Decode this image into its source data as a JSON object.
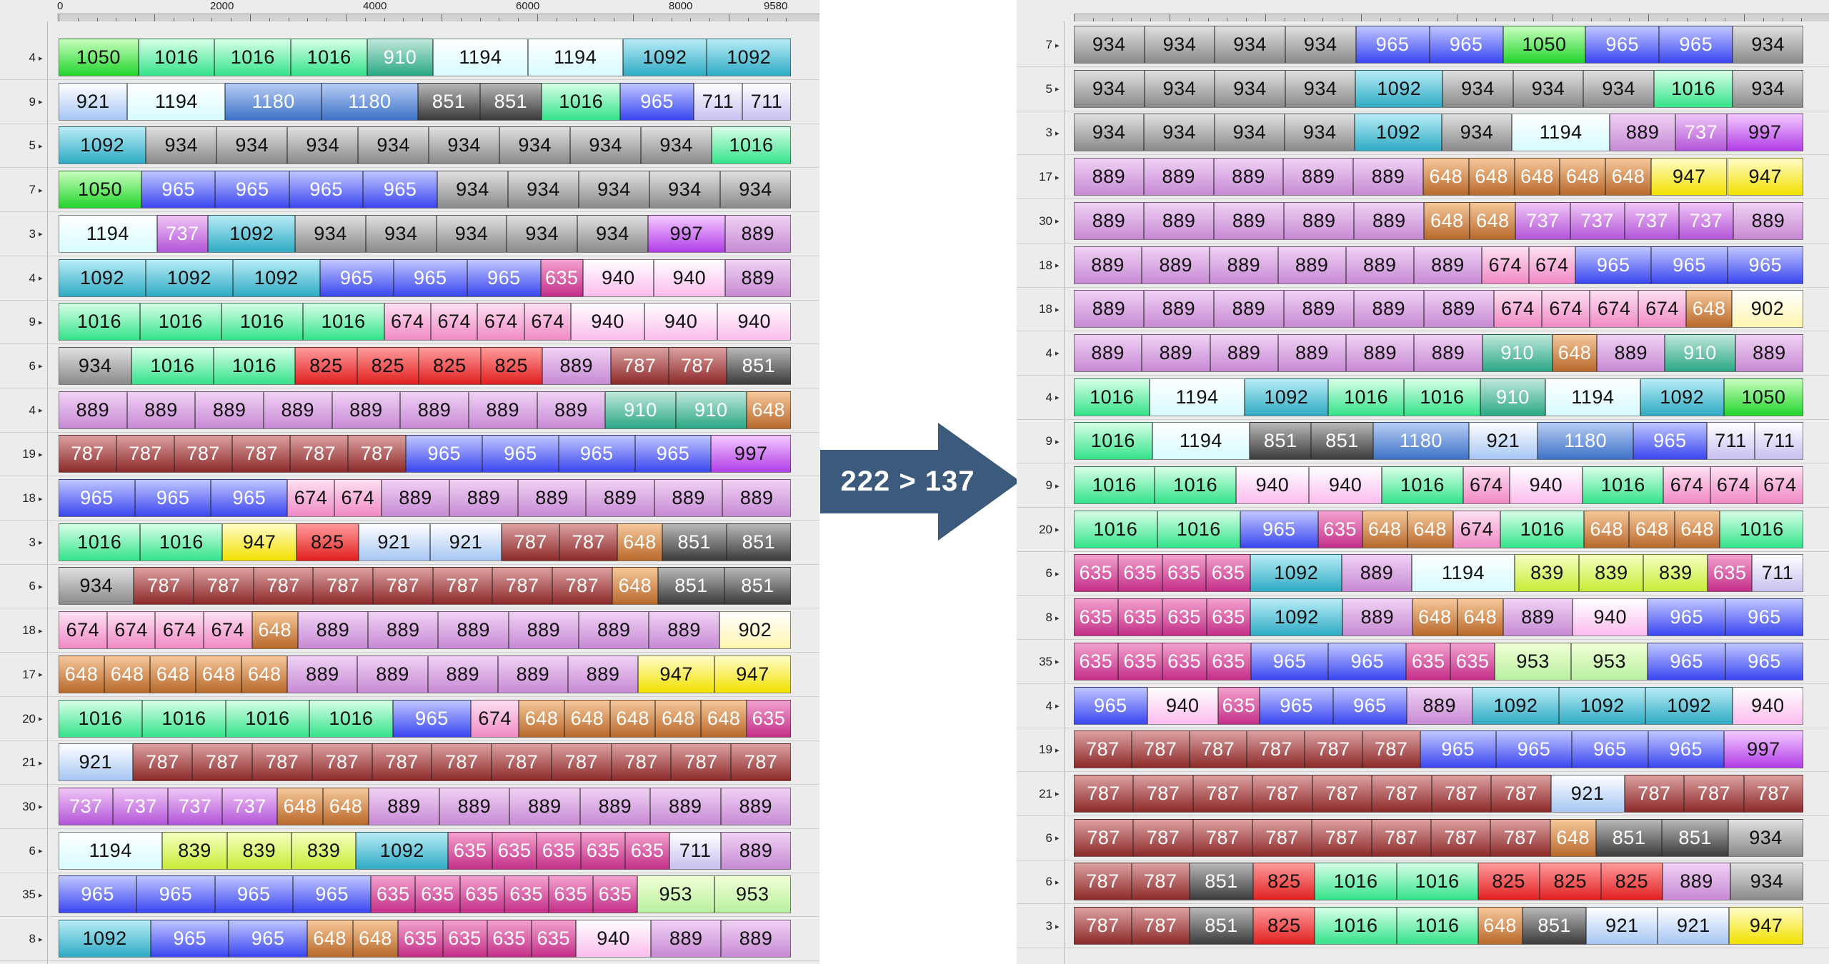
{
  "arrow_label": "222 > 137",
  "arrow_color": "#3c5a7c",
  "left": {
    "ruler_labels": [
      "0",
      "2000",
      "4000",
      "6000",
      "8000",
      "9580"
    ],
    "rows": [
      {
        "label": "4",
        "blocks": [
          "1050",
          "1016",
          "1016",
          "1016",
          "910",
          "1194",
          "1194",
          "1092",
          "1092"
        ]
      },
      {
        "label": "9",
        "blocks": [
          "921",
          "1194",
          "1180",
          "1180",
          "851",
          "851",
          "1016",
          "965",
          "711",
          "711"
        ]
      },
      {
        "label": "5",
        "blocks": [
          "1092",
          "934",
          "934",
          "934",
          "934",
          "934",
          "934",
          "934",
          "934",
          "1016"
        ]
      },
      {
        "label": "7",
        "blocks": [
          "1050",
          "965",
          "965",
          "965",
          "965",
          "934",
          "934",
          "934",
          "934",
          "934"
        ]
      },
      {
        "label": "3",
        "blocks": [
          "1194",
          "737",
          "1092",
          "934",
          "934",
          "934",
          "934",
          "934",
          "997",
          "889"
        ]
      },
      {
        "label": "4",
        "blocks": [
          "1092",
          "1092",
          "1092",
          "965",
          "965",
          "965",
          "635",
          "940",
          "940",
          "889"
        ]
      },
      {
        "label": "9",
        "blocks": [
          "1016",
          "1016",
          "1016",
          "1016",
          "674",
          "674",
          "674",
          "674",
          "940",
          "940",
          "940"
        ]
      },
      {
        "label": "6",
        "blocks": [
          "934",
          "1016",
          "1016",
          "825",
          "825",
          "825",
          "825",
          "889",
          "787",
          "787",
          "851"
        ]
      },
      {
        "label": "4",
        "blocks": [
          "889",
          "889",
          "889",
          "889",
          "889",
          "889",
          "889",
          "889",
          "910",
          "910",
          "648"
        ]
      },
      {
        "label": "19",
        "blocks": [
          "787",
          "787",
          "787",
          "787",
          "787",
          "787",
          "965",
          "965",
          "965",
          "965",
          "997"
        ]
      },
      {
        "label": "18",
        "blocks": [
          "965",
          "965",
          "965",
          "674",
          "674",
          "889",
          "889",
          "889",
          "889",
          "889",
          "889"
        ]
      },
      {
        "label": "3",
        "blocks": [
          "1016",
          "1016",
          "947",
          "825",
          "921",
          "921",
          "787",
          "787",
          "648",
          "851",
          "851"
        ]
      },
      {
        "label": "6",
        "blocks": [
          "934",
          "787",
          "787",
          "787",
          "787",
          "787",
          "787",
          "787",
          "787",
          "648",
          "851",
          "851"
        ]
      },
      {
        "label": "18",
        "blocks": [
          "674",
          "674",
          "674",
          "674",
          "648",
          "889",
          "889",
          "889",
          "889",
          "889",
          "889",
          "902"
        ]
      },
      {
        "label": "17",
        "blocks": [
          "648",
          "648",
          "648",
          "648",
          "648",
          "889",
          "889",
          "889",
          "889",
          "889",
          "947",
          "947"
        ]
      },
      {
        "label": "20",
        "blocks": [
          "1016",
          "1016",
          "1016",
          "1016",
          "965",
          "674",
          "648",
          "648",
          "648",
          "648",
          "648",
          "635"
        ]
      },
      {
        "label": "21",
        "blocks": [
          "921",
          "787",
          "787",
          "787",
          "787",
          "787",
          "787",
          "787",
          "787",
          "787",
          "787",
          "787"
        ]
      },
      {
        "label": "30",
        "blocks": [
          "737",
          "737",
          "737",
          "737",
          "648",
          "648",
          "889",
          "889",
          "889",
          "889",
          "889",
          "889"
        ]
      },
      {
        "label": "6",
        "blocks": [
          "1194",
          "839",
          "839",
          "839",
          "1092",
          "635",
          "635",
          "635",
          "635",
          "635",
          "711",
          "889"
        ]
      },
      {
        "label": "35",
        "blocks": [
          "965",
          "965",
          "965",
          "965",
          "635",
          "635",
          "635",
          "635",
          "635",
          "635",
          "953",
          "953"
        ]
      },
      {
        "label": "8",
        "blocks": [
          "1092",
          "965",
          "965",
          "648",
          "648",
          "635",
          "635",
          "635",
          "635",
          "940",
          "889",
          "889"
        ]
      }
    ]
  },
  "right": {
    "ruler_labels": [],
    "rows": [
      {
        "label": "7",
        "blocks": [
          "934",
          "934",
          "934",
          "934",
          "965",
          "965",
          "1050",
          "965",
          "965",
          "934"
        ]
      },
      {
        "label": "5",
        "blocks": [
          "934",
          "934",
          "934",
          "934",
          "1092",
          "934",
          "934",
          "934",
          "1016",
          "934"
        ]
      },
      {
        "label": "3",
        "blocks": [
          "934",
          "934",
          "934",
          "934",
          "1092",
          "934",
          "1194",
          "889",
          "737",
          "997"
        ]
      },
      {
        "label": "17",
        "blocks": [
          "889",
          "889",
          "889",
          "889",
          "889",
          "648",
          "648",
          "648",
          "648",
          "648",
          "947",
          "947"
        ]
      },
      {
        "label": "30",
        "blocks": [
          "889",
          "889",
          "889",
          "889",
          "889",
          "648",
          "648",
          "737",
          "737",
          "737",
          "737",
          "889"
        ]
      },
      {
        "label": "18",
        "blocks": [
          "889",
          "889",
          "889",
          "889",
          "889",
          "889",
          "674",
          "674",
          "965",
          "965",
          "965"
        ]
      },
      {
        "label": "18",
        "blocks": [
          "889",
          "889",
          "889",
          "889",
          "889",
          "889",
          "674",
          "674",
          "674",
          "674",
          "648",
          "902"
        ]
      },
      {
        "label": "4",
        "blocks": [
          "889",
          "889",
          "889",
          "889",
          "889",
          "889",
          "910",
          "648",
          "889",
          "910",
          "889"
        ]
      },
      {
        "label": "4",
        "blocks": [
          "1016",
          "1194",
          "1092",
          "1016",
          "1016",
          "910",
          "1194",
          "1092",
          "1050"
        ]
      },
      {
        "label": "9",
        "blocks": [
          "1016",
          "1194",
          "851",
          "851",
          "1180",
          "921",
          "1180",
          "965",
          "711",
          "711"
        ]
      },
      {
        "label": "9",
        "blocks": [
          "1016",
          "1016",
          "940",
          "940",
          "1016",
          "674",
          "940",
          "1016",
          "674",
          "674",
          "674"
        ]
      },
      {
        "label": "20",
        "blocks": [
          "1016",
          "1016",
          "965",
          "635",
          "648",
          "648",
          "674",
          "1016",
          "648",
          "648",
          "648",
          "1016"
        ]
      },
      {
        "label": "6",
        "blocks": [
          "635",
          "635",
          "635",
          "635",
          "1092",
          "889",
          "1194",
          "839",
          "839",
          "839",
          "635",
          "711"
        ]
      },
      {
        "label": "8",
        "blocks": [
          "635",
          "635",
          "635",
          "635",
          "1092",
          "889",
          "648",
          "648",
          "889",
          "940",
          "965",
          "965"
        ]
      },
      {
        "label": "35",
        "blocks": [
          "635",
          "635",
          "635",
          "635",
          "965",
          "965",
          "635",
          "635",
          "953",
          "953",
          "965",
          "965"
        ]
      },
      {
        "label": "4",
        "blocks": [
          "965",
          "940",
          "635",
          "965",
          "965",
          "889",
          "1092",
          "1092",
          "1092",
          "940"
        ]
      },
      {
        "label": "19",
        "blocks": [
          "787",
          "787",
          "787",
          "787",
          "787",
          "787",
          "965",
          "965",
          "965",
          "965",
          "997"
        ]
      },
      {
        "label": "21",
        "blocks": [
          "787",
          "787",
          "787",
          "787",
          "787",
          "787",
          "787",
          "787",
          "921",
          "787",
          "787",
          "787"
        ]
      },
      {
        "label": "6",
        "blocks": [
          "787",
          "787",
          "787",
          "787",
          "787",
          "787",
          "787",
          "787",
          "648",
          "851",
          "851",
          "934"
        ]
      },
      {
        "label": "6",
        "blocks": [
          "787",
          "787",
          "851",
          "825",
          "1016",
          "1016",
          "825",
          "825",
          "825",
          "889",
          "934"
        ]
      },
      {
        "label": "3",
        "blocks": [
          "787",
          "787",
          "851",
          "825",
          "1016",
          "1016",
          "648",
          "851",
          "921",
          "921",
          "947"
        ]
      }
    ]
  },
  "colors": {
    "635": [
      "#f3a1cf",
      "#c32f88",
      "#ffffff"
    ],
    "648": [
      "#f6c89a",
      "#b8692c",
      "#ffffff"
    ],
    "674": [
      "#fde0f1",
      "#f08ac6",
      "#111111"
    ],
    "711": [
      "#ffffff",
      "#c8c0f0",
      "#111111"
    ],
    "737": [
      "#f0c6f6",
      "#b255d8",
      "#ffffff"
    ],
    "787": [
      "#dca0a0",
      "#8d2a2a",
      "#ffffff"
    ],
    "825": [
      "#ff9b9b",
      "#e12020",
      "#111111"
    ],
    "839": [
      "#f4ffc0",
      "#c8ec36",
      "#111111"
    ],
    "851": [
      "#b8b8b8",
      "#3b3b3b",
      "#ffffff"
    ],
    "889": [
      "#f0d2f4",
      "#c78ad4",
      "#111111"
    ],
    "902": [
      "#ffffff",
      "#fff4b0",
      "#111111"
    ],
    "910": [
      "#bfe7db",
      "#2aa885",
      "#ffffff"
    ],
    "921": [
      "#ffffff",
      "#a6c6f4",
      "#111111"
    ],
    "934": [
      "#e0e0e0",
      "#8a8a8a",
      "#111111"
    ],
    "940": [
      "#ffffff",
      "#fbbcee",
      "#111111"
    ],
    "947": [
      "#fffcc8",
      "#f2e100",
      "#111111"
    ],
    "953": [
      "#f2ffd6",
      "#b8f0a0",
      "#111111"
    ],
    "965": [
      "#c0c6ff",
      "#3a46f0",
      "#ffffff"
    ],
    "997": [
      "#f4c9ff",
      "#b13de8",
      "#111111"
    ],
    "1016": [
      "#d8ffe8",
      "#34e38a",
      "#111111"
    ],
    "1050": [
      "#c8ffbe",
      "#22d42c",
      "#111111"
    ],
    "1092": [
      "#b8ecf6",
      "#2eabc4",
      "#111111"
    ],
    "1180": [
      "#b8cdf6",
      "#3d72c6",
      "#ffffff"
    ],
    "1194": [
      "#ffffff",
      "#d6fbff",
      "#111111"
    ]
  }
}
